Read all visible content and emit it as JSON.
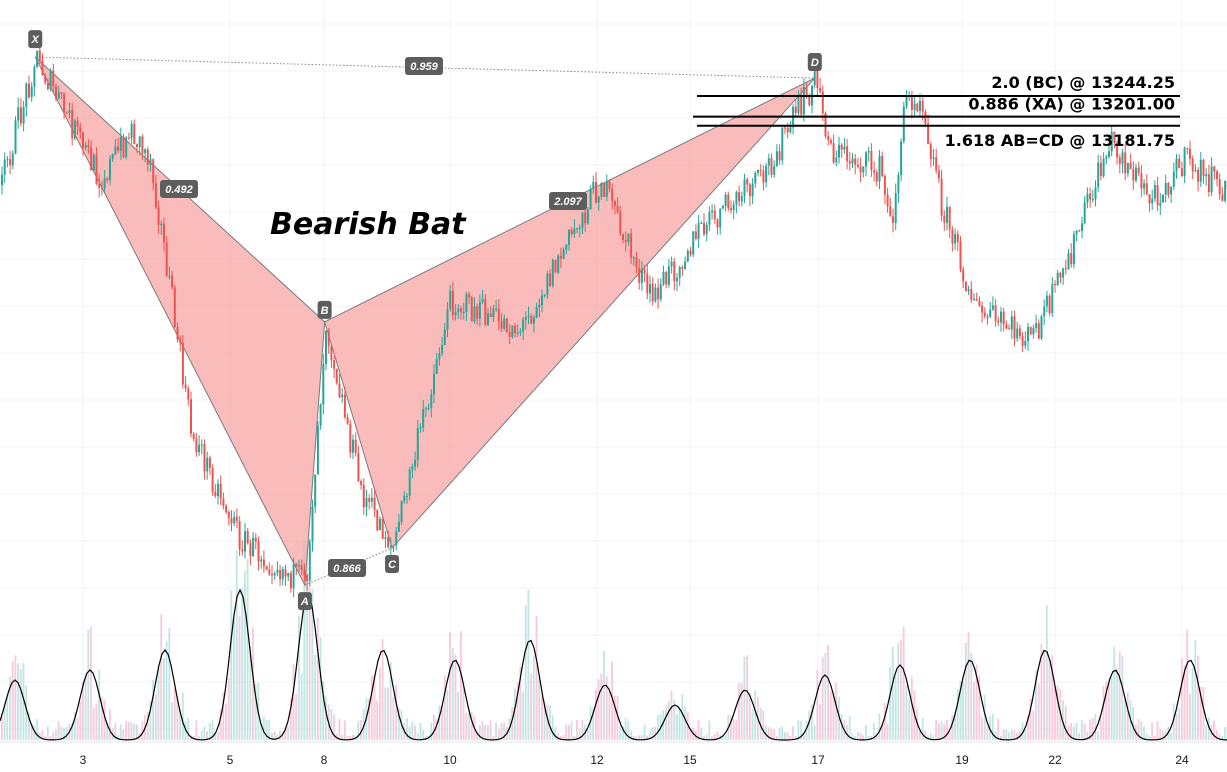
{
  "chart_data": {
    "type": "candlestick",
    "title": "Bearish Bat",
    "x_ticks": [
      "3",
      "5",
      "8",
      "10",
      "12",
      "15",
      "17",
      "19",
      "22",
      "24"
    ],
    "grid": true,
    "colors": {
      "up": "#26a69a",
      "down": "#ef5350",
      "pattern_fill": "#f7a6a4",
      "volume_up": "#b2dfdb",
      "volume_down": "#f8bbd0",
      "oscillator": "#000000"
    },
    "pattern": {
      "name": "Bearish Bat",
      "points": [
        {
          "label": "X",
          "day": 2.35,
          "price": 13326
        },
        {
          "label": "A",
          "day": 7.39,
          "price": 12217
        },
        {
          "label": "B",
          "day": 8.01,
          "price": 12770
        },
        {
          "label": "C",
          "day": 9.08,
          "price": 12295
        },
        {
          "label": "D",
          "day": 16.95,
          "price": 13282
        }
      ],
      "ratios": [
        {
          "from": "X",
          "to": "D",
          "value": "0.959"
        },
        {
          "from": "X",
          "to": "B",
          "value": "0.492"
        },
        {
          "from": "A",
          "to": "C",
          "value": "0.866"
        },
        {
          "from": "B",
          "to": "D",
          "value": "2.097"
        }
      ]
    },
    "levels": [
      {
        "label": "2.0 (BC) @ 13244.25",
        "price": 13244.25
      },
      {
        "label": "0.886 (XA) @ 13201.00",
        "price": 13201.0
      },
      {
        "label": "1.618 AB=CD @ 13181.75",
        "price": 13181.75
      }
    ]
  }
}
